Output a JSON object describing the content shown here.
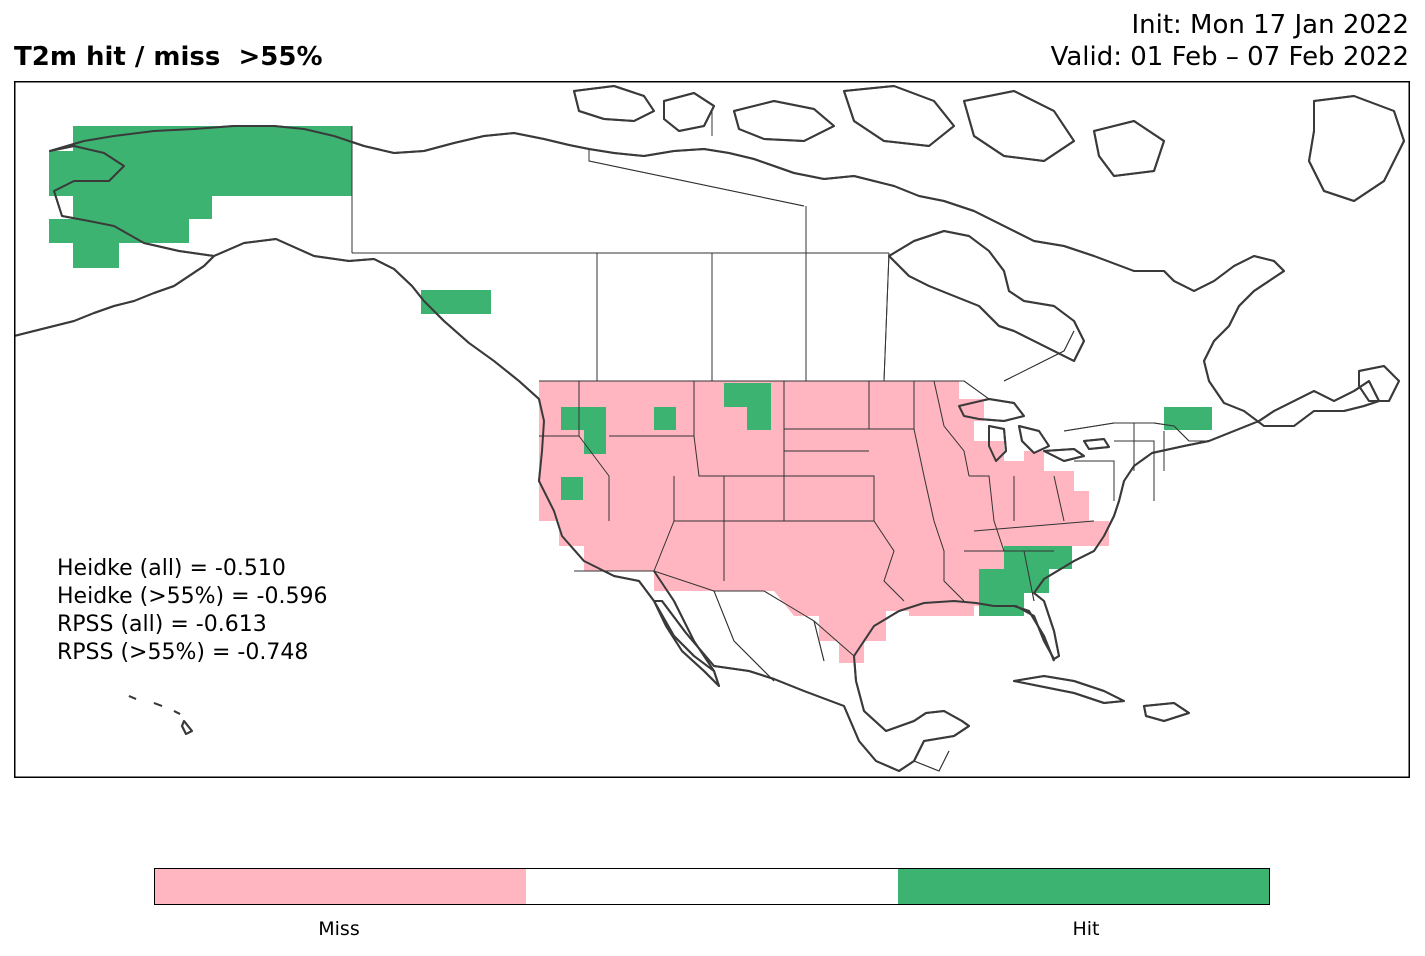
{
  "header": {
    "title": "T2m hit / miss  >55%",
    "init": "Init: Mon 17 Jan 2022",
    "valid": "Valid: 01 Feb – 07 Feb 2022"
  },
  "stats": [
    "Heidke (all) = -0.510",
    "Heidke (>55%) = -0.596",
    "RPSS (all) = -0.613",
    "RPSS (>55%) = -0.748"
  ],
  "legend": {
    "miss_label": "Miss",
    "hit_label": "Hit",
    "colors": {
      "miss": "#ffb6c1",
      "neutral": "#ffffff",
      "hit": "#3cb371"
    }
  },
  "colors": {
    "coastline": "#3a3a3a",
    "border": "#333333"
  }
}
